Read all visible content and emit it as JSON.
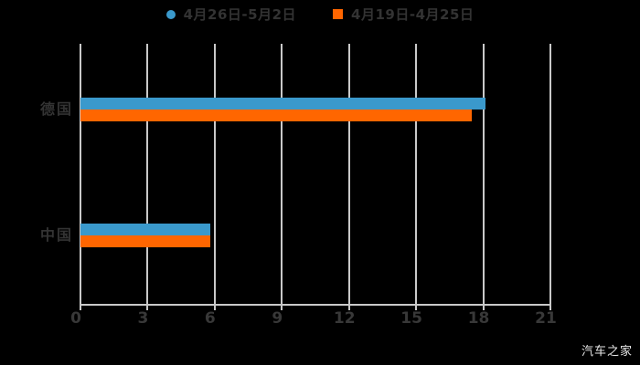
{
  "legend": {
    "items": [
      {
        "label": "4月26日-5月2日",
        "color": "#3A99CC",
        "marker": "circle"
      },
      {
        "label": "4月19日-4月25日",
        "color": "#FF6600",
        "marker": "square"
      }
    ]
  },
  "footer": {
    "watermark": "汽车之家"
  },
  "colors": {
    "background": "#000000",
    "gridline": "#C9C9C9",
    "axis_line": "#C9C9C9",
    "tick_label": "#383838",
    "category_label": "#333333",
    "legend_text": "#333333",
    "watermark": "#E8E8E8",
    "series_blue": "#3A99CC",
    "series_orange": "#FF6600"
  },
  "chart_data": {
    "type": "bar",
    "orientation": "horizontal",
    "title": "",
    "xlabel": "",
    "ylabel": "",
    "categories": [
      "德国",
      "中国"
    ],
    "series": [
      {
        "name": "4月26日-5月2日",
        "color": "#3A99CC",
        "values": [
          18.1,
          5.8
        ]
      },
      {
        "name": "4月19日-4月25日",
        "color": "#FF6600",
        "values": [
          17.5,
          5.8
        ]
      }
    ],
    "xlim": [
      0,
      21
    ],
    "xticks": [
      0,
      3,
      6,
      9,
      12,
      15,
      18,
      21
    ],
    "grid": true,
    "legend_position": "top"
  }
}
